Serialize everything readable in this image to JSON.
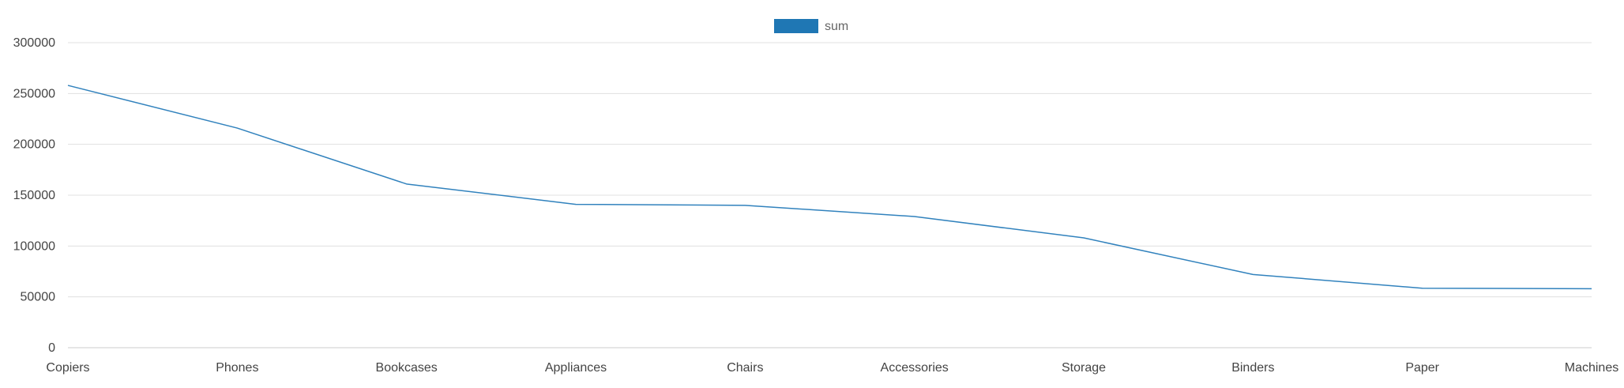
{
  "chart_data": {
    "type": "line",
    "categories": [
      "Copiers",
      "Phones",
      "Bookcases",
      "Appliances",
      "Chairs",
      "Accessories",
      "Storage",
      "Binders",
      "Paper",
      "Machines"
    ],
    "series": [
      {
        "name": "sum",
        "values": [
          258000,
          216000,
          161000,
          141000,
          140000,
          129000,
          108000,
          72000,
          58500,
          58000
        ]
      }
    ],
    "ylim": [
      0,
      300000
    ],
    "yticks": [
      0,
      50000,
      100000,
      150000,
      200000,
      250000,
      300000
    ],
    "grid": true,
    "legend_position": "top-center",
    "colors": {
      "series": "#3182bd",
      "legend_swatch": "#1f77b4",
      "grid": "#e0e0e0",
      "axis": "#cccccc"
    }
  }
}
